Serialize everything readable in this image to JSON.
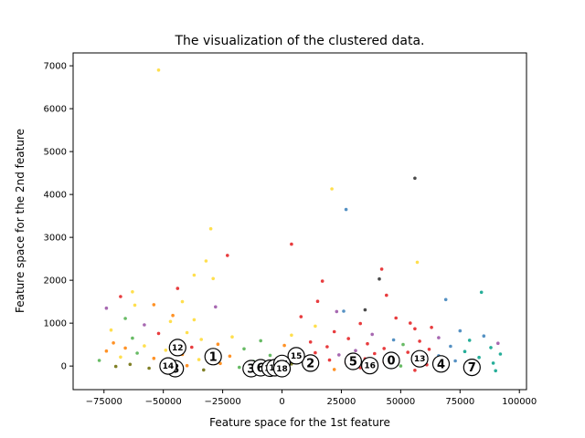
{
  "chart_data": {
    "type": "scatter",
    "title": "The visualization of the clustered data.",
    "xlabel": "Feature space for the 1st feature",
    "ylabel": "Feature space for the 2nd feature",
    "xlim": [
      -88000,
      103000
    ],
    "ylim": [
      -550,
      7300
    ],
    "x_ticks": [
      -75000,
      -50000,
      -25000,
      0,
      25000,
      50000,
      75000,
      100000
    ],
    "x_tick_labels": [
      "−75000",
      "−50000",
      "−25000",
      "0",
      "25000",
      "50000",
      "75000",
      "100000"
    ],
    "y_ticks": [
      0,
      1000,
      2000,
      3000,
      4000,
      5000,
      6000,
      7000
    ],
    "y_tick_labels": [
      "0",
      "1000",
      "2000",
      "3000",
      "4000",
      "5000",
      "6000",
      "7000"
    ],
    "grid": false,
    "legend": "none",
    "cluster_colors": [
      "#e41a1c",
      "#4daf4a",
      "#ff7f00",
      "#ffd92f",
      "#984ea3",
      "#377eb8",
      "#00a087",
      "#6a6a00",
      "#2b2b2b",
      "#f781bf",
      "#a65628",
      "#999999"
    ],
    "points": [
      {
        "x": -52000,
        "y": 6900,
        "c": "#ffd92f"
      },
      {
        "x": 21000,
        "y": 4130,
        "c": "#ffd92f"
      },
      {
        "x": 56000,
        "y": 4380,
        "c": "#2b2b2b"
      },
      {
        "x": 27000,
        "y": 3650,
        "c": "#377eb8"
      },
      {
        "x": -30000,
        "y": 3200,
        "c": "#ffd92f"
      },
      {
        "x": 4000,
        "y": 2840,
        "c": "#e41a1c"
      },
      {
        "x": -23000,
        "y": 2580,
        "c": "#e41a1c"
      },
      {
        "x": -32000,
        "y": 2450,
        "c": "#ffd92f"
      },
      {
        "x": 57000,
        "y": 2420,
        "c": "#ffd92f"
      },
      {
        "x": 42000,
        "y": 2260,
        "c": "#e41a1c"
      },
      {
        "x": -37000,
        "y": 2120,
        "c": "#ffd92f"
      },
      {
        "x": 41000,
        "y": 2030,
        "c": "#2b2b2b"
      },
      {
        "x": -29000,
        "y": 2040,
        "c": "#ffd92f"
      },
      {
        "x": 17000,
        "y": 1980,
        "c": "#e41a1c"
      },
      {
        "x": -44000,
        "y": 1810,
        "c": "#e41a1c"
      },
      {
        "x": 84000,
        "y": 1720,
        "c": "#00a087"
      },
      {
        "x": -63000,
        "y": 1730,
        "c": "#ffd92f"
      },
      {
        "x": 44000,
        "y": 1650,
        "c": "#e41a1c"
      },
      {
        "x": -68000,
        "y": 1620,
        "c": "#e41a1c"
      },
      {
        "x": 69000,
        "y": 1550,
        "c": "#377eb8"
      },
      {
        "x": 15000,
        "y": 1510,
        "c": "#e41a1c"
      },
      {
        "x": -42000,
        "y": 1500,
        "c": "#ffd92f"
      },
      {
        "x": -54000,
        "y": 1430,
        "c": "#ff7f00"
      },
      {
        "x": -62000,
        "y": 1420,
        "c": "#ffd92f"
      },
      {
        "x": -28000,
        "y": 1380,
        "c": "#984ea3"
      },
      {
        "x": -74000,
        "y": 1350,
        "c": "#984ea3"
      },
      {
        "x": 35000,
        "y": 1310,
        "c": "#2b2b2b"
      },
      {
        "x": 26000,
        "y": 1280,
        "c": "#377eb8"
      },
      {
        "x": 23000,
        "y": 1270,
        "c": "#984ea3"
      },
      {
        "x": -46000,
        "y": 1180,
        "c": "#ff7f00"
      },
      {
        "x": 8000,
        "y": 1150,
        "c": "#e41a1c"
      },
      {
        "x": -66000,
        "y": 1110,
        "c": "#4daf4a"
      },
      {
        "x": 48000,
        "y": 1120,
        "c": "#e41a1c"
      },
      {
        "x": -37000,
        "y": 1080,
        "c": "#ffd92f"
      },
      {
        "x": -47000,
        "y": 1040,
        "c": "#ffd92f"
      },
      {
        "x": 54000,
        "y": 1000,
        "c": "#e41a1c"
      },
      {
        "x": 33000,
        "y": 990,
        "c": "#e41a1c"
      },
      {
        "x": -58000,
        "y": 960,
        "c": "#984ea3"
      },
      {
        "x": 14000,
        "y": 930,
        "c": "#ffd92f"
      },
      {
        "x": 63000,
        "y": 900,
        "c": "#e41a1c"
      },
      {
        "x": 56000,
        "y": 870,
        "c": "#e41a1c"
      },
      {
        "x": -72000,
        "y": 840,
        "c": "#ffd92f"
      },
      {
        "x": 75000,
        "y": 820,
        "c": "#377eb8"
      },
      {
        "x": 22000,
        "y": 800,
        "c": "#e41a1c"
      },
      {
        "x": -40000,
        "y": 780,
        "c": "#ffd92f"
      },
      {
        "x": -52000,
        "y": 760,
        "c": "#e41a1c"
      },
      {
        "x": 38000,
        "y": 740,
        "c": "#984ea3"
      },
      {
        "x": 4000,
        "y": 720,
        "c": "#ffd92f"
      },
      {
        "x": 85000,
        "y": 700,
        "c": "#377eb8"
      },
      {
        "x": -21000,
        "y": 680,
        "c": "#ffd92f"
      },
      {
        "x": 66000,
        "y": 660,
        "c": "#984ea3"
      },
      {
        "x": -63000,
        "y": 650,
        "c": "#4daf4a"
      },
      {
        "x": 28000,
        "y": 640,
        "c": "#e41a1c"
      },
      {
        "x": -34000,
        "y": 620,
        "c": "#ffd92f"
      },
      {
        "x": 47000,
        "y": 610,
        "c": "#377eb8"
      },
      {
        "x": 79000,
        "y": 600,
        "c": "#00a087"
      },
      {
        "x": -9000,
        "y": 590,
        "c": "#4daf4a"
      },
      {
        "x": 58000,
        "y": 580,
        "c": "#e41a1c"
      },
      {
        "x": 12000,
        "y": 560,
        "c": "#e41a1c"
      },
      {
        "x": -45000,
        "y": 550,
        "c": "#ff7f00"
      },
      {
        "x": -71000,
        "y": 540,
        "c": "#ff7f00"
      },
      {
        "x": 91000,
        "y": 530,
        "c": "#984ea3"
      },
      {
        "x": 36000,
        "y": 520,
        "c": "#e41a1c"
      },
      {
        "x": -27000,
        "y": 510,
        "c": "#ff7f00"
      },
      {
        "x": 51000,
        "y": 500,
        "c": "#4daf4a"
      },
      {
        "x": 1000,
        "y": 480,
        "c": "#ff7f00"
      },
      {
        "x": -58000,
        "y": 470,
        "c": "#ffd92f"
      },
      {
        "x": 71000,
        "y": 460,
        "c": "#377eb8"
      },
      {
        "x": 19000,
        "y": 450,
        "c": "#e41a1c"
      },
      {
        "x": -38000,
        "y": 440,
        "c": "#e41a1c"
      },
      {
        "x": 88000,
        "y": 430,
        "c": "#00a087"
      },
      {
        "x": -66000,
        "y": 420,
        "c": "#ff7f00"
      },
      {
        "x": 43000,
        "y": 410,
        "c": "#e41a1c"
      },
      {
        "x": -16000,
        "y": 400,
        "c": "#4daf4a"
      },
      {
        "x": 62000,
        "y": 390,
        "c": "#e41a1c"
      },
      {
        "x": 7000,
        "y": 380,
        "c": "#ffd92f"
      },
      {
        "x": -49000,
        "y": 370,
        "c": "#ffd92f"
      },
      {
        "x": 31000,
        "y": 360,
        "c": "#984ea3"
      },
      {
        "x": -74000,
        "y": 350,
        "c": "#ff7f00"
      },
      {
        "x": 77000,
        "y": 340,
        "c": "#00a087"
      },
      {
        "x": -30000,
        "y": 330,
        "c": "#ffd92f"
      },
      {
        "x": 53000,
        "y": 320,
        "c": "#e41a1c"
      },
      {
        "x": 14000,
        "y": 310,
        "c": "#e41a1c"
      },
      {
        "x": -61000,
        "y": 300,
        "c": "#4daf4a"
      },
      {
        "x": 39000,
        "y": 290,
        "c": "#e41a1c"
      },
      {
        "x": 92000,
        "y": 280,
        "c": "#00a087"
      },
      {
        "x": -42000,
        "y": 270,
        "c": "#ff7f00"
      },
      {
        "x": 24000,
        "y": 260,
        "c": "#984ea3"
      },
      {
        "x": -5000,
        "y": 250,
        "c": "#4daf4a"
      },
      {
        "x": 66000,
        "y": 240,
        "c": "#377eb8"
      },
      {
        "x": -22000,
        "y": 230,
        "c": "#ff7f00"
      },
      {
        "x": 47000,
        "y": 220,
        "c": "#e41a1c"
      },
      {
        "x": -68000,
        "y": 210,
        "c": "#ffd92f"
      },
      {
        "x": 83000,
        "y": 200,
        "c": "#00a087"
      },
      {
        "x": 9000,
        "y": 190,
        "c": "#ff7f00"
      },
      {
        "x": -54000,
        "y": 180,
        "c": "#ff7f00"
      },
      {
        "x": 35000,
        "y": 170,
        "c": "#e41a1c"
      },
      {
        "x": 58000,
        "y": 160,
        "c": "#4daf4a"
      },
      {
        "x": -35000,
        "y": 150,
        "c": "#ffd92f"
      },
      {
        "x": 20000,
        "y": 140,
        "c": "#e41a1c"
      },
      {
        "x": -77000,
        "y": 130,
        "c": "#4daf4a"
      },
      {
        "x": 73000,
        "y": 120,
        "c": "#377eb8"
      },
      {
        "x": -12000,
        "y": 110,
        "c": "#4daf4a"
      },
      {
        "x": 43000,
        "y": 100,
        "c": "#e41a1c"
      },
      {
        "x": -47000,
        "y": 90,
        "c": "#ff7f00"
      },
      {
        "x": 27000,
        "y": 80,
        "c": "#e41a1c"
      },
      {
        "x": 89000,
        "y": 70,
        "c": "#00a087"
      },
      {
        "x": -26000,
        "y": 60,
        "c": "#ff7f00"
      },
      {
        "x": 4000,
        "y": 50,
        "c": "#6a6a00"
      },
      {
        "x": -64000,
        "y": 40,
        "c": "#6a6a00"
      },
      {
        "x": 61000,
        "y": 30,
        "c": "#e41a1c"
      },
      {
        "x": 14000,
        "y": 20,
        "c": "#ff7f00"
      },
      {
        "x": -40000,
        "y": 10,
        "c": "#ff7f00"
      },
      {
        "x": 50000,
        "y": 0,
        "c": "#4daf4a"
      },
      {
        "x": -70000,
        "y": -10,
        "c": "#6a6a00"
      },
      {
        "x": 81000,
        "y": -20,
        "c": "#00a087"
      },
      {
        "x": -18000,
        "y": -30,
        "c": "#4daf4a"
      },
      {
        "x": 33000,
        "y": -40,
        "c": "#e41a1c"
      },
      {
        "x": -56000,
        "y": -50,
        "c": "#6a6a00"
      },
      {
        "x": 69000,
        "y": -60,
        "c": "#377eb8"
      },
      {
        "x": -2000,
        "y": -70,
        "c": "#4daf4a"
      },
      {
        "x": 22000,
        "y": -80,
        "c": "#ff7f00"
      },
      {
        "x": -33000,
        "y": -90,
        "c": "#6a6a00"
      },
      {
        "x": 56000,
        "y": -100,
        "c": "#e41a1c"
      },
      {
        "x": 90000,
        "y": -110,
        "c": "#00a087"
      }
    ],
    "centers": [
      {
        "label": "0",
        "x": 46000,
        "y": 130
      },
      {
        "label": "1",
        "x": -29000,
        "y": 220
      },
      {
        "label": "2",
        "x": 12000,
        "y": 70
      },
      {
        "label": "3",
        "x": -13000,
        "y": -60
      },
      {
        "label": "4",
        "x": 67000,
        "y": 50
      },
      {
        "label": "5",
        "x": 30000,
        "y": 110
      },
      {
        "label": "6",
        "x": -9000,
        "y": -40
      },
      {
        "label": "7",
        "x": 80000,
        "y": -30
      },
      {
        "label": "8",
        "x": -45000,
        "y": -60
      },
      {
        "label": "10",
        "x": -5000,
        "y": -50
      },
      {
        "label": "11",
        "x": -3000,
        "y": -40
      },
      {
        "label": "12",
        "x": -44000,
        "y": 430
      },
      {
        "label": "13",
        "x": 58000,
        "y": 170
      },
      {
        "label": "14",
        "x": -48000,
        "y": 0
      },
      {
        "label": "15",
        "x": 6000,
        "y": 240
      },
      {
        "label": "16",
        "x": 37000,
        "y": 10
      },
      {
        "label": "17",
        "x": 0,
        "y": 60
      },
      {
        "label": "18",
        "x": 0,
        "y": -60
      }
    ]
  }
}
